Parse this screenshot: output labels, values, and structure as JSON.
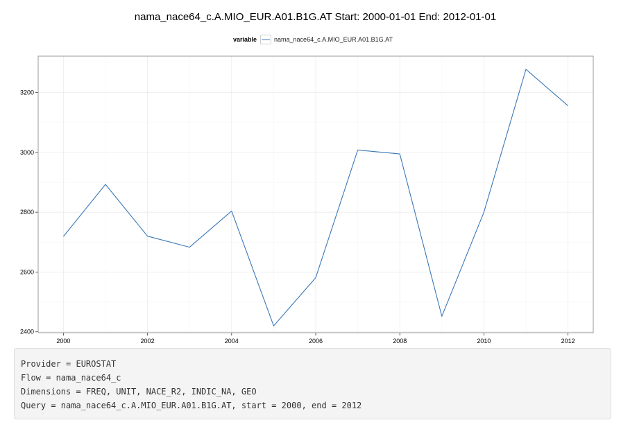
{
  "chart_data": {
    "type": "line",
    "title": "nama_nace64_c.A.MIO_EUR.A01.B1G.AT Start: 2000-01-01 End: 2012-01-01",
    "xlabel": "",
    "ylabel": "",
    "x": [
      2000,
      2001,
      2002,
      2003,
      2004,
      2005,
      2006,
      2007,
      2008,
      2009,
      2010,
      2011,
      2012
    ],
    "x_ticks": [
      "2000",
      "2002",
      "2004",
      "2006",
      "2008",
      "2010",
      "2012"
    ],
    "y_ticks": [
      "2400",
      "2600",
      "2800",
      "3000",
      "3200"
    ],
    "xlim": [
      1999.4,
      2012.6
    ],
    "ylim": [
      2397,
      3322
    ],
    "grid": true,
    "legend": {
      "title": "variable",
      "placement": "top"
    },
    "series": [
      {
        "name": "nama_nace64_c.A.MIO_EUR.A01.B1G.AT",
        "color": "#3a78b8",
        "values": [
          2719,
          2893,
          2720,
          2683,
          2804,
          2420,
          2581,
          3008,
          2995,
          2452,
          2800,
          3278,
          3156
        ]
      }
    ]
  },
  "info": {
    "lines": [
      "Provider = EUROSTAT",
      "Flow = nama_nace64_c",
      "Dimensions = FREQ, UNIT, NACE_R2, INDIC_NA, GEO",
      "Query = nama_nace64_c.A.MIO_EUR.A01.B1G.AT, start = 2000, end = 2012"
    ]
  }
}
